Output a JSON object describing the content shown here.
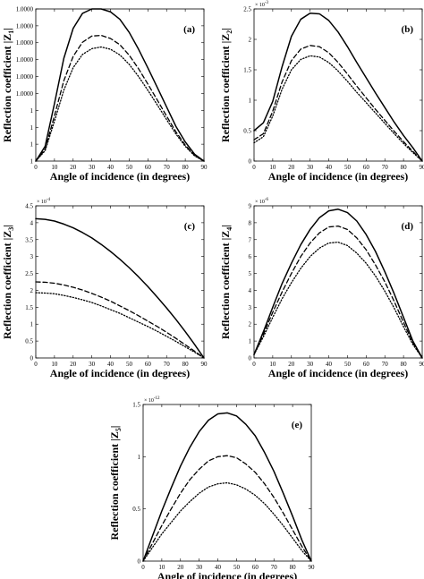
{
  "chart_data": [
    {
      "type": "line",
      "panel_label": "(a)",
      "xlabel": "Angle of incidence (in degrees)",
      "ylabel": "Reflection coefficient |Z",
      "ylabel_sub": "1",
      "ylabel_end": "|",
      "y_exponent": "",
      "xlim": [
        0,
        90
      ],
      "ylim": [
        1,
        1.0001
      ],
      "xticks": [
        "0",
        "10",
        "20",
        "30",
        "40",
        "50",
        "60",
        "70",
        "80",
        "90"
      ],
      "yticks": [
        "1",
        "1",
        "1",
        "1",
        "1.0000",
        "1.0000",
        "1.0000",
        "1.0000",
        "1.0000",
        "1.0000"
      ],
      "ytick_values": [
        1,
        1.0000111,
        1.0000222,
        1.0000333,
        1.0000444,
        1.0000556,
        1.0000667,
        1.0000778,
        1.0000889,
        1.0001
      ],
      "x": [
        0,
        5,
        10,
        15,
        20,
        25,
        30,
        35,
        40,
        45,
        50,
        55,
        60,
        65,
        70,
        75,
        80,
        85,
        90
      ],
      "series": [
        {
          "style": "solid",
          "values": [
            1,
            1.0000097,
            1.0000378,
            1.0000675,
            1.0000872,
            1.0000971,
            1.0001,
            1.0001,
            1.0000981,
            1.0000932,
            1.0000846,
            1.0000735,
            1.0000612,
            1.0000485,
            1.0000356,
            1.0000228,
            1.0000126,
            1.0000045,
            1
          ]
        },
        {
          "style": "dashed",
          "values": [
            1,
            1.0000078,
            1.0000298,
            1.0000528,
            1.0000688,
            1.0000781,
            1.0000822,
            1.0000826,
            1.0000806,
            1.0000765,
            1.0000696,
            1.0000607,
            1.0000506,
            1.0000402,
            1.0000296,
            1.0000192,
            1.0000105,
            1.0000037,
            1
          ]
        },
        {
          "style": "dotted",
          "values": [
            1,
            1.0000068,
            1.0000262,
            1.0000466,
            1.0000614,
            1.0000701,
            1.0000739,
            1.000075,
            1.0000735,
            1.0000698,
            1.0000636,
            1.0000556,
            1.0000465,
            1.000037,
            1.0000273,
            1.0000178,
            1.0000097,
            1.0000034,
            1
          ]
        }
      ]
    },
    {
      "type": "line",
      "panel_label": "(b)",
      "xlabel": "Angle of incidence (in degrees)",
      "ylabel": "Reflection coefficient |Z",
      "ylabel_sub": "2",
      "ylabel_end": "|",
      "y_exponent": "-3",
      "xlim": [
        0,
        90
      ],
      "ylim": [
        0,
        2.5
      ],
      "xticks": [
        "0",
        "10",
        "20",
        "30",
        "40",
        "50",
        "60",
        "70",
        "80",
        "90"
      ],
      "yticks": [
        "0",
        "0.5",
        "1",
        "1.5",
        "2",
        "2.5"
      ],
      "ytick_values": [
        0,
        0.5,
        1,
        1.5,
        2,
        2.5
      ],
      "x": [
        0,
        5,
        10,
        15,
        20,
        25,
        30,
        35,
        40,
        45,
        50,
        55,
        60,
        65,
        70,
        75,
        80,
        85,
        90
      ],
      "series": [
        {
          "style": "solid",
          "values": [
            0.5,
            0.63,
            0.98,
            1.55,
            2.05,
            2.33,
            2.43,
            2.42,
            2.31,
            2.12,
            1.88,
            1.62,
            1.37,
            1.12,
            0.88,
            0.64,
            0.42,
            0.22,
            0
          ]
        },
        {
          "style": "dashed",
          "values": [
            0.35,
            0.45,
            0.82,
            1.3,
            1.65,
            1.84,
            1.9,
            1.88,
            1.78,
            1.62,
            1.43,
            1.23,
            1.04,
            0.85,
            0.67,
            0.49,
            0.32,
            0.16,
            0
          ]
        },
        {
          "style": "dotted",
          "values": [
            0.3,
            0.4,
            0.74,
            1.18,
            1.5,
            1.67,
            1.73,
            1.71,
            1.62,
            1.48,
            1.31,
            1.13,
            0.96,
            0.79,
            0.62,
            0.45,
            0.29,
            0.14,
            0
          ]
        }
      ]
    },
    {
      "type": "line",
      "panel_label": "(c)",
      "xlabel": "Angle of incidence (in degrees)",
      "ylabel": "Reflection coefficient |Z",
      "ylabel_sub": "3",
      "ylabel_end": "|",
      "y_exponent": "-4",
      "xlim": [
        0,
        90
      ],
      "ylim": [
        0,
        4.5
      ],
      "xticks": [
        "0",
        "10",
        "20",
        "30",
        "40",
        "50",
        "60",
        "70",
        "80",
        "90"
      ],
      "yticks": [
        "0",
        "0.5",
        "1",
        "1.5",
        "2",
        "2.5",
        "3",
        "3.5",
        "4",
        "4.5"
      ],
      "ytick_values": [
        0,
        0.5,
        1,
        1.5,
        2,
        2.5,
        3,
        3.5,
        4,
        4.5
      ],
      "x": [
        0,
        5,
        10,
        15,
        20,
        25,
        30,
        35,
        40,
        45,
        50,
        55,
        60,
        65,
        70,
        75,
        80,
        85,
        90
      ],
      "series": [
        {
          "style": "solid",
          "values": [
            4.12,
            4.1,
            4.05,
            3.96,
            3.85,
            3.71,
            3.55,
            3.36,
            3.15,
            2.92,
            2.67,
            2.4,
            2.11,
            1.8,
            1.48,
            1.14,
            0.78,
            0.4,
            0
          ]
        },
        {
          "style": "dashed",
          "values": [
            2.25,
            2.24,
            2.21,
            2.16,
            2.09,
            2.01,
            1.91,
            1.8,
            1.68,
            1.54,
            1.4,
            1.25,
            1.09,
            0.93,
            0.76,
            0.58,
            0.39,
            0.2,
            0
          ]
        },
        {
          "style": "dotted",
          "values": [
            1.93,
            1.92,
            1.9,
            1.85,
            1.79,
            1.72,
            1.64,
            1.54,
            1.43,
            1.32,
            1.19,
            1.06,
            0.93,
            0.79,
            0.64,
            0.49,
            0.33,
            0.17,
            0
          ]
        }
      ]
    },
    {
      "type": "line",
      "panel_label": "(d)",
      "xlabel": "Angle of incidence (in degrees)",
      "ylabel": "Reflection coefficient |Z",
      "ylabel_sub": "4",
      "ylabel_end": "|",
      "y_exponent": "-6",
      "xlim": [
        0,
        90
      ],
      "ylim": [
        0,
        9
      ],
      "xticks": [
        "0",
        "10",
        "20",
        "30",
        "40",
        "50",
        "60",
        "70",
        "80",
        "90"
      ],
      "yticks": [
        "0",
        "1",
        "2",
        "3",
        "4",
        "5",
        "6",
        "7",
        "8",
        "9"
      ],
      "ytick_values": [
        0,
        1,
        2,
        3,
        4,
        5,
        6,
        7,
        8,
        9
      ],
      "x": [
        0,
        5,
        10,
        15,
        20,
        25,
        30,
        35,
        40,
        45,
        50,
        55,
        60,
        65,
        70,
        75,
        80,
        85,
        90
      ],
      "series": [
        {
          "style": "solid",
          "values": [
            0.2,
            1.55,
            3.0,
            4.4,
            5.6,
            6.7,
            7.6,
            8.3,
            8.7,
            8.8,
            8.6,
            8.1,
            7.3,
            6.3,
            5.1,
            3.8,
            2.4,
            1.0,
            0
          ]
        },
        {
          "style": "dashed",
          "values": [
            0.2,
            1.4,
            2.7,
            3.9,
            5.0,
            6.0,
            6.8,
            7.4,
            7.75,
            7.8,
            7.6,
            7.1,
            6.4,
            5.5,
            4.5,
            3.35,
            2.1,
            0.9,
            0
          ]
        },
        {
          "style": "dotted",
          "values": [
            0.2,
            1.25,
            2.4,
            3.5,
            4.45,
            5.3,
            6.0,
            6.5,
            6.8,
            6.85,
            6.65,
            6.2,
            5.6,
            4.85,
            3.95,
            2.95,
            1.85,
            0.8,
            0
          ]
        }
      ]
    },
    {
      "type": "line",
      "panel_label": "(e)",
      "xlabel": "Angle of incidence (in degrees)",
      "ylabel": "Reflection coefficient |Z",
      "ylabel_sub": "5",
      "ylabel_end": "|",
      "y_exponent": "-12",
      "xlim": [
        0,
        90
      ],
      "ylim": [
        0,
        1.5
      ],
      "xticks": [
        "0",
        "10",
        "20",
        "30",
        "40",
        "50",
        "60",
        "70",
        "80",
        "90"
      ],
      "yticks": [
        "0",
        "0.5",
        "1",
        "1.5"
      ],
      "ytick_values": [
        0,
        0.5,
        1,
        1.5
      ],
      "x": [
        0,
        5,
        10,
        15,
        20,
        25,
        30,
        35,
        40,
        45,
        50,
        55,
        60,
        65,
        70,
        75,
        80,
        85,
        90
      ],
      "series": [
        {
          "style": "solid",
          "values": [
            0,
            0.24,
            0.48,
            0.7,
            0.91,
            1.09,
            1.24,
            1.35,
            1.41,
            1.42,
            1.39,
            1.31,
            1.2,
            1.04,
            0.86,
            0.65,
            0.43,
            0.2,
            0
          ]
        },
        {
          "style": "dashed",
          "values": [
            0,
            0.17,
            0.34,
            0.5,
            0.65,
            0.78,
            0.88,
            0.96,
            1.0,
            1.01,
            0.99,
            0.93,
            0.85,
            0.74,
            0.61,
            0.46,
            0.3,
            0.14,
            0
          ]
        },
        {
          "style": "dotted",
          "values": [
            0,
            0.13,
            0.26,
            0.37,
            0.48,
            0.57,
            0.65,
            0.71,
            0.74,
            0.75,
            0.73,
            0.69,
            0.63,
            0.55,
            0.45,
            0.34,
            0.22,
            0.1,
            0
          ]
        }
      ]
    }
  ]
}
